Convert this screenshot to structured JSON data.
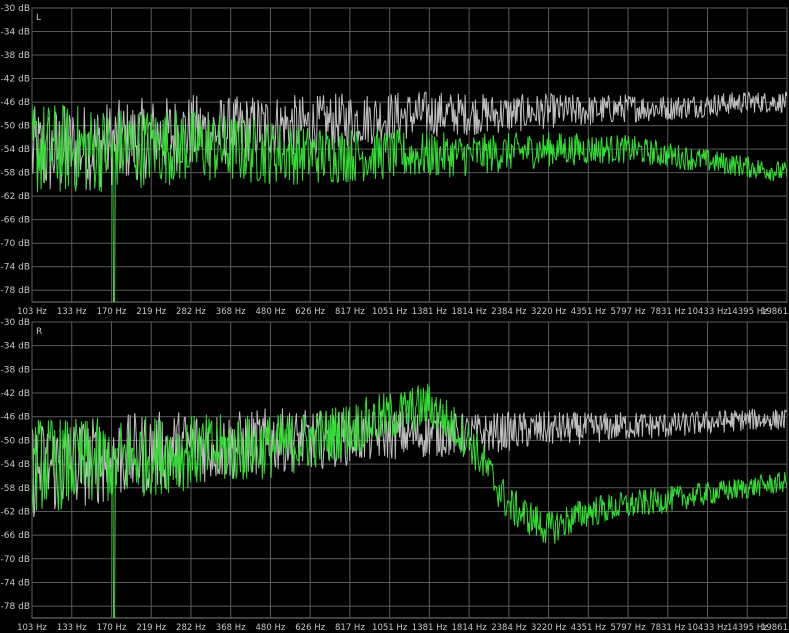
{
  "chart_data": [
    {
      "type": "line",
      "panel_label": "L",
      "ylim": [
        -80,
        -30
      ],
      "y_ticks": [
        "-30 dB",
        "-34 dB",
        "-38 dB",
        "-42 dB",
        "-46 dB",
        "-50 dB",
        "-54 dB",
        "-58 dB",
        "-62 dB",
        "-66 dB",
        "-70 dB",
        "-74 dB",
        "-78 dB"
      ],
      "x_ticks": [
        "103 Hz",
        "133 Hz",
        "170 Hz",
        "219 Hz",
        "282 Hz",
        "368 Hz",
        "480 Hz",
        "626 Hz",
        "817 Hz",
        "1051 Hz",
        "1381 Hz",
        "1814 Hz",
        "2384 Hz",
        "3220 Hz",
        "4351 Hz",
        "5797 Hz",
        "7831 Hz",
        "10433 Hz",
        "14395 Hz",
        "19861"
      ],
      "series": [
        {
          "color": "#bfbfbf",
          "x": [
            103,
            133,
            170,
            219,
            282,
            368,
            480,
            626,
            817,
            1051,
            1381,
            1814,
            2384,
            3220,
            4351,
            5797,
            7831,
            10433,
            14395,
            19861
          ],
          "y": [
            -55,
            -54,
            -53,
            -52,
            -51,
            -51,
            -50,
            -50,
            -49,
            -48.5,
            -48,
            -48,
            -48,
            -47.5,
            -47.5,
            -47,
            -47,
            -46.5,
            -46,
            -46
          ]
        },
        {
          "color": "#33dd33",
          "x": [
            103,
            133,
            170,
            219,
            282,
            368,
            480,
            626,
            817,
            1051,
            1381,
            1814,
            2384,
            3220,
            4351,
            5797,
            7831,
            10433,
            14395,
            19861
          ],
          "y": [
            -54,
            -54,
            -54,
            -53.5,
            -53.5,
            -54,
            -54.5,
            -55,
            -55,
            -55,
            -55,
            -55,
            -54.5,
            -54,
            -54,
            -54,
            -55,
            -56,
            -57,
            -58
          ]
        }
      ]
    },
    {
      "type": "line",
      "panel_label": "R",
      "ylim": [
        -80,
        -30
      ],
      "y_ticks": [
        "-30 dB",
        "-34 dB",
        "-38 dB",
        "-42 dB",
        "-46 dB",
        "-50 dB",
        "-54 dB",
        "-58 dB",
        "-62 dB",
        "-66 dB",
        "-70 dB",
        "-74 dB",
        "-78 dB"
      ],
      "x_ticks": [
        "103 Hz",
        "133 Hz",
        "170 Hz",
        "219 Hz",
        "282 Hz",
        "368 Hz",
        "480 Hz",
        "626 Hz",
        "817 Hz",
        "1051 Hz",
        "1381 Hz",
        "1814 Hz",
        "2384 Hz",
        "3220 Hz",
        "4351 Hz",
        "5797 Hz",
        "7831 Hz",
        "10433 Hz",
        "14395 Hz",
        "19861"
      ],
      "series": [
        {
          "color": "#bfbfbf",
          "x": [
            103,
            133,
            170,
            219,
            282,
            368,
            480,
            626,
            817,
            1051,
            1381,
            1814,
            2384,
            3220,
            4351,
            5797,
            7831,
            10433,
            14395,
            19861
          ],
          "y": [
            -55,
            -54,
            -53,
            -52,
            -51,
            -51,
            -50,
            -50,
            -49.5,
            -49,
            -49,
            -49,
            -48.5,
            -48,
            -48,
            -47.5,
            -47.5,
            -47,
            -46.5,
            -46.5
          ]
        },
        {
          "color": "#33dd33",
          "x": [
            103,
            133,
            170,
            219,
            282,
            368,
            480,
            626,
            817,
            1051,
            1381,
            1814,
            2384,
            3220,
            4351,
            5797,
            7831,
            10433,
            14395,
            19861
          ],
          "y": [
            -54,
            -54,
            -53.5,
            -52.5,
            -52,
            -51.5,
            -51,
            -50,
            -48,
            -46,
            -44,
            -50,
            -61,
            -65,
            -62,
            -61,
            -60,
            -59,
            -58,
            -57
          ]
        }
      ]
    }
  ]
}
